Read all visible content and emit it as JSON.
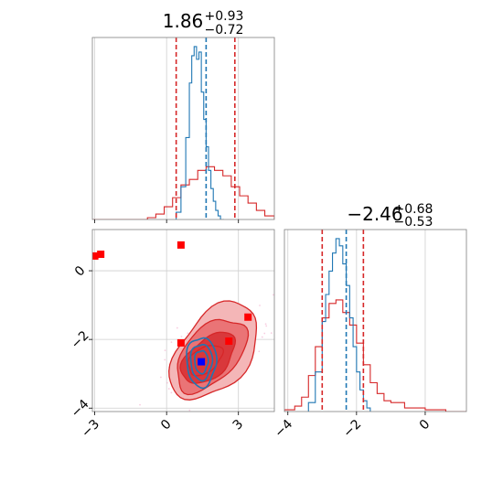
{
  "colors": {
    "red": "#d62728",
    "red_fill_light": "#f4b6b7",
    "red_fill_mid": "#ea7476",
    "red_fill_dark": "#d9383b",
    "blue": "#1f77b4",
    "marker_red": "#ff0000",
    "marker_blue": "#0000ff",
    "grid": "#cfcfcf",
    "spine": "#7f7f7f"
  },
  "chart_data": {
    "type": "corner",
    "parameters": [
      {
        "title_value": "1.86",
        "title_plus": "+0.93",
        "title_minus": "−0.72",
        "range": [
          -3.1,
          4.5
        ],
        "ticks": [
          -3,
          0,
          3
        ],
        "tick_labels": [
          "−3",
          "0",
          "3"
        ],
        "quantile_lines_red": [
          0.4,
          2.85
        ],
        "quantile_lines_blue": [
          1.65
        ],
        "hist_red": {
          "edges": [
            -3.1,
            -0.8,
            -0.45,
            -0.1,
            0.25,
            0.6,
            0.95,
            1.3,
            1.65,
            2.0,
            2.35,
            2.7,
            3.05,
            3.4,
            3.75,
            4.1,
            4.5
          ],
          "counts": [
            0,
            0.01,
            0.03,
            0.07,
            0.12,
            0.19,
            0.22,
            0.27,
            0.29,
            0.27,
            0.24,
            0.18,
            0.13,
            0.09,
            0.05,
            0.02
          ]
        },
        "hist_blue": {
          "edges": [
            0.4,
            0.6,
            0.8,
            0.95,
            1.05,
            1.15,
            1.25,
            1.35,
            1.45,
            1.55,
            1.65,
            1.75,
            1.85,
            1.95,
            2.05,
            2.15,
            2.25,
            2.4
          ],
          "counts": [
            0.04,
            0.18,
            0.45,
            0.75,
            0.9,
            0.95,
            0.88,
            0.92,
            0.7,
            0.55,
            0.4,
            0.27,
            0.17,
            0.1,
            0.05,
            0.02,
            0.0
          ]
        }
      },
      {
        "title_value": "−2.46",
        "title_plus": "+0.68",
        "title_minus": "−0.53",
        "range": [
          -4.1,
          1.2
        ],
        "ticks": [
          -4,
          -2,
          0
        ],
        "tick_labels": [
          "−4",
          "−2",
          "0"
        ],
        "quantile_lines_red": [
          -3.0,
          -1.8
        ],
        "quantile_lines_blue": [
          -2.3
        ],
        "hist_red": {
          "edges": [
            -4.1,
            -3.8,
            -3.6,
            -3.4,
            -3.2,
            -3.0,
            -2.8,
            -2.6,
            -2.4,
            -2.2,
            -2.0,
            -1.8,
            -1.6,
            -1.4,
            -1.2,
            -1.0,
            -0.6,
            0.0,
            0.6,
            1.2
          ],
          "counts": [
            0.01,
            0.03,
            0.08,
            0.2,
            0.36,
            0.52,
            0.6,
            0.62,
            0.55,
            0.48,
            0.38,
            0.26,
            0.16,
            0.1,
            0.06,
            0.05,
            0.02,
            0.01,
            0.0
          ]
        },
        "hist_blue": {
          "edges": [
            -3.4,
            -3.2,
            -3.0,
            -2.9,
            -2.8,
            -2.7,
            -2.6,
            -2.5,
            -2.4,
            -2.3,
            -2.2,
            -2.1,
            -2.0,
            -1.9,
            -1.8,
            -1.7,
            -1.6
          ],
          "counts": [
            0.05,
            0.22,
            0.5,
            0.65,
            0.78,
            0.88,
            0.96,
            0.92,
            0.82,
            0.7,
            0.52,
            0.36,
            0.22,
            0.12,
            0.06,
            0.02
          ]
        }
      }
    ],
    "joint": {
      "red_markers": [
        [
          -3.0,
          0.43
        ],
        [
          -2.75,
          0.48
        ],
        [
          0.6,
          0.75
        ],
        [
          0.6,
          -2.1
        ],
        [
          2.6,
          -2.05
        ],
        [
          3.4,
          -1.35
        ]
      ],
      "blue_marker": [
        1.45,
        -2.65
      ],
      "red_contours": [
        {
          "cx": 2.0,
          "cy": -2.35,
          "rx": 2.0,
          "ry": 1.15,
          "rot": 30
        },
        {
          "cx": 1.85,
          "cy": -2.45,
          "rx": 1.6,
          "ry": 0.85,
          "rot": 28
        },
        {
          "cx": 1.75,
          "cy": -2.55,
          "rx": 1.2,
          "ry": 0.6,
          "rot": 25
        },
        {
          "cx": 1.6,
          "cy": -2.6,
          "rx": 0.75,
          "ry": 0.38,
          "rot": 20
        }
      ],
      "blue_contours": [
        {
          "cx": 1.45,
          "cy": -2.65,
          "rx": 0.62,
          "ry": 0.72,
          "rot": 0
        },
        {
          "cx": 1.45,
          "cy": -2.65,
          "rx": 0.45,
          "ry": 0.52,
          "rot": 0
        },
        {
          "cx": 1.45,
          "cy": -2.65,
          "rx": 0.28,
          "ry": 0.33,
          "rot": 0
        }
      ]
    },
    "grid": true
  }
}
